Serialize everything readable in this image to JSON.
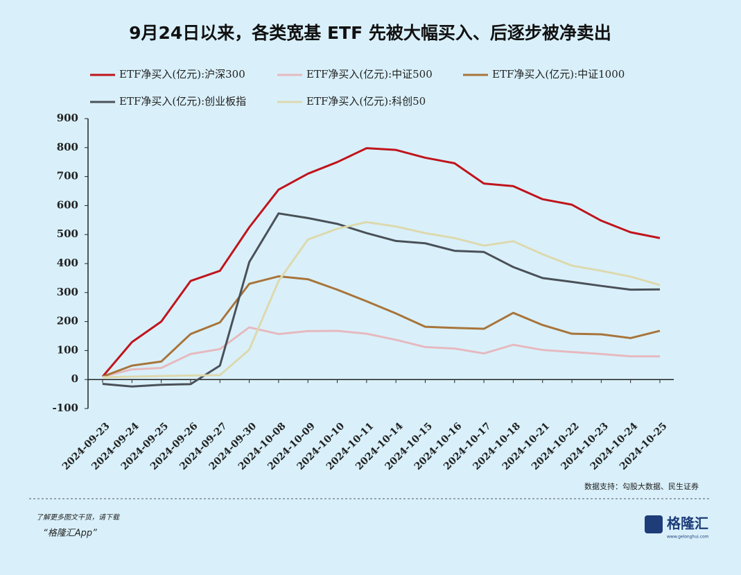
{
  "chart_data": {
    "type": "line",
    "title": "9月24日以来，各类宽基 ETF 先被大幅买入、后逐步被净卖出",
    "categories": [
      "2024-09-23",
      "2024-09-24",
      "2024-09-25",
      "2024-09-26",
      "2024-09-27",
      "2024-09-30",
      "2024-10-08",
      "2024-10-09",
      "2024-10-10",
      "2024-10-11",
      "2024-10-14",
      "2024-10-15",
      "2024-10-16",
      "2024-10-17",
      "2024-10-18",
      "2024-10-21",
      "2024-10-22",
      "2024-10-23",
      "2024-10-24",
      "2024-10-25"
    ],
    "series": [
      {
        "name": "ETF净买入(亿元):沪深300",
        "color": "#c0141c",
        "values": [
          10,
          129,
          200,
          340,
          375,
          525,
          655,
          710,
          750,
          798,
          792,
          765,
          746,
          676,
          667,
          622,
          603,
          548,
          508,
          488
        ]
      },
      {
        "name": "ETF净买入(亿元):中证500",
        "color": "#e6b9bf",
        "values": [
          10,
          35,
          40,
          88,
          105,
          180,
          157,
          167,
          168,
          158,
          137,
          112,
          107,
          90,
          120,
          102,
          95,
          88,
          80,
          80
        ]
      },
      {
        "name": "ETF净买入(亿元):中证1000",
        "color": "#a8743a",
        "values": [
          10,
          48,
          62,
          157,
          197,
          330,
          356,
          346,
          310,
          270,
          228,
          182,
          178,
          175,
          230,
          188,
          158,
          156,
          143,
          168
        ]
      },
      {
        "name": "ETF净买入(亿元):创业板指",
        "color": "#4a5058",
        "values": [
          -15,
          -24,
          -18,
          -16,
          48,
          405,
          573,
          557,
          537,
          505,
          478,
          470,
          444,
          440,
          388,
          350,
          337,
          323,
          310,
          311
        ]
      },
      {
        "name": "ETF净买入(亿元):科创50",
        "color": "#ddd9ae",
        "values": [
          8,
          10,
          12,
          14,
          15,
          103,
          340,
          483,
          520,
          543,
          528,
          505,
          488,
          462,
          477,
          432,
          393,
          375,
          355,
          326
        ]
      }
    ],
    "ylim": [
      -100,
      900
    ],
    "yticks": [
      -100,
      0,
      100,
      200,
      300,
      400,
      500,
      600,
      700,
      800,
      900
    ],
    "grid": false,
    "source": "数据支持：勾股大数据、民生证券"
  },
  "footer": {
    "prompt": "了解更多图文干货，请下载",
    "app": "“格隆汇App”",
    "logo": "格隆汇",
    "site": "www.gelonghui.com"
  }
}
